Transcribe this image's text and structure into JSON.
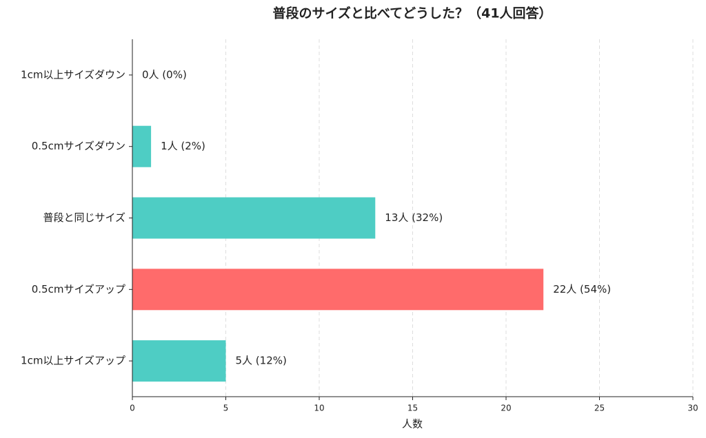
{
  "chart_data": {
    "type": "barh",
    "title": "普段のサイズと比べてどうした？（41人回答）",
    "x_label": "人数",
    "categories": [
      "1cm以上サイズダウン",
      "0.5cmサイズダウン",
      "普段と同じサイズ",
      "0.5cmサイズアップ",
      "1cm以上サイズアップ"
    ],
    "values": [
      0,
      1,
      13,
      22,
      5
    ],
    "value_labels": [
      "0人 (0%)",
      "1人 (2%)",
      "13人 (32%)",
      "22人 (54%)",
      "5人 (12%)"
    ],
    "colors": [
      "#4ecdc4",
      "#4ecdc4",
      "#4ecdc4",
      "#ff6b6b",
      "#4ecdc4"
    ],
    "xlim": [
      0,
      30
    ],
    "xticks": [
      0,
      5,
      10,
      15,
      20,
      25,
      30
    ],
    "grid": true
  }
}
